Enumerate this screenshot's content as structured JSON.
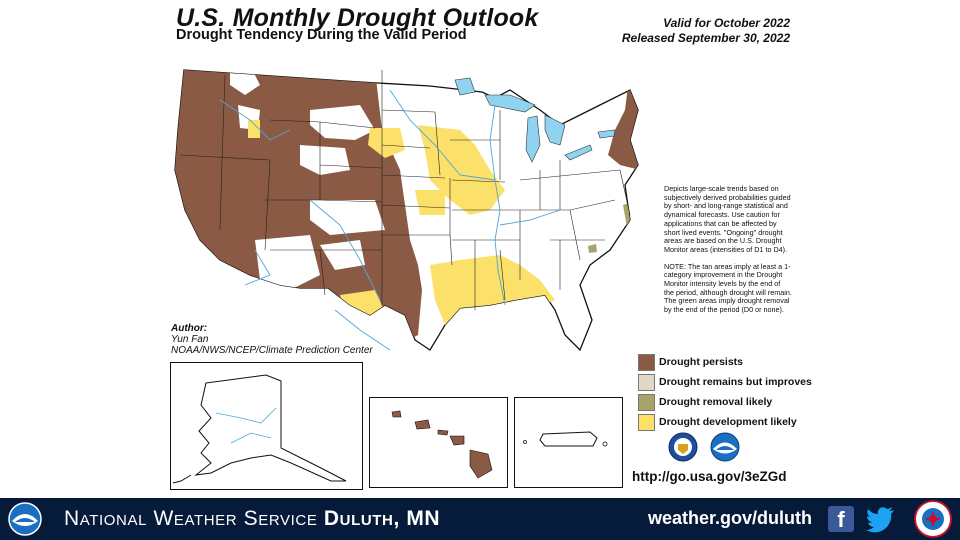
{
  "header": {
    "title": "U.S. Monthly Drought Outlook",
    "subtitle": "Drought Tendency During the Valid Period",
    "valid": "Valid for October 2022",
    "released": "Released September 30, 2022"
  },
  "author": {
    "label": "Author:",
    "name": "Yun Fan",
    "org": "NOAA/NWS/NCEP/Climate Prediction Center"
  },
  "description": {
    "p1": "Depicts large-scale trends based on subjectively derived probabilities guided by short- and long-range statistical and dynamical forecasts. Use caution for applications that can be affected by short lived events. \"Ongoing\" drought areas are based on the U.S. Drought Monitor areas (intensities of D1 to D4).",
    "p2": "NOTE: The tan areas imply at least a 1-category improvement in the Drought Monitor intensity levels by the end of the period, although drought will remain. The green areas imply drought removal by the end of the period (D0 or none)."
  },
  "legend": [
    {
      "label": "Drought persists",
      "color": "#8b5a44"
    },
    {
      "label": "Drought remains but improves",
      "color": "#e3d8c7"
    },
    {
      "label": "Drought removal likely",
      "color": "#a7a36a"
    },
    {
      "label": "Drought development likely",
      "color": "#fbe06a"
    }
  ],
  "url": "http://go.usa.gov/3eZGd",
  "footer": {
    "office_prefix": "National Weather Service",
    "office_name": "Duluth, MN",
    "website": "weather.gov/duluth"
  },
  "colors": {
    "persists": "#8b5a44",
    "development": "#fbe06a",
    "removal": "#a7a36a",
    "water": "#8fd3f0",
    "river": "#4da6d9",
    "footer_bg": "#061a3a"
  },
  "icons": [
    "noaa-logo",
    "doc-seal",
    "facebook-icon",
    "twitter-icon",
    "nws-logo"
  ]
}
